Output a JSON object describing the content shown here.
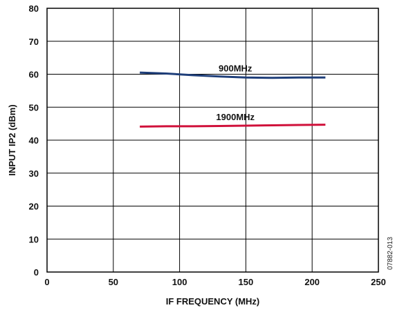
{
  "chart_data": {
    "type": "line",
    "xlabel": "IF FREQUENCY (MHz)",
    "ylabel": "INPUT IP2 (dBm)",
    "xlim": [
      0,
      250
    ],
    "ylim": [
      0,
      80
    ],
    "x_ticks": [
      0,
      50,
      100,
      150,
      200,
      250
    ],
    "y_ticks": [
      0,
      10,
      20,
      30,
      40,
      50,
      60,
      70,
      80
    ],
    "grid": true,
    "figure_code": "07882-013",
    "series": [
      {
        "name": "900MHz",
        "color": "#1f3f7a",
        "x": [
          70,
          90,
          110,
          130,
          150,
          170,
          190,
          210
        ],
        "y": [
          60.5,
          60.2,
          59.7,
          59.3,
          59.0,
          58.9,
          59.0,
          59.0
        ]
      },
      {
        "name": "1900MHz",
        "color": "#d0103a",
        "x": [
          70,
          90,
          110,
          130,
          150,
          170,
          190,
          210
        ],
        "y": [
          44.1,
          44.2,
          44.2,
          44.3,
          44.4,
          44.5,
          44.6,
          44.7
        ]
      }
    ]
  }
}
